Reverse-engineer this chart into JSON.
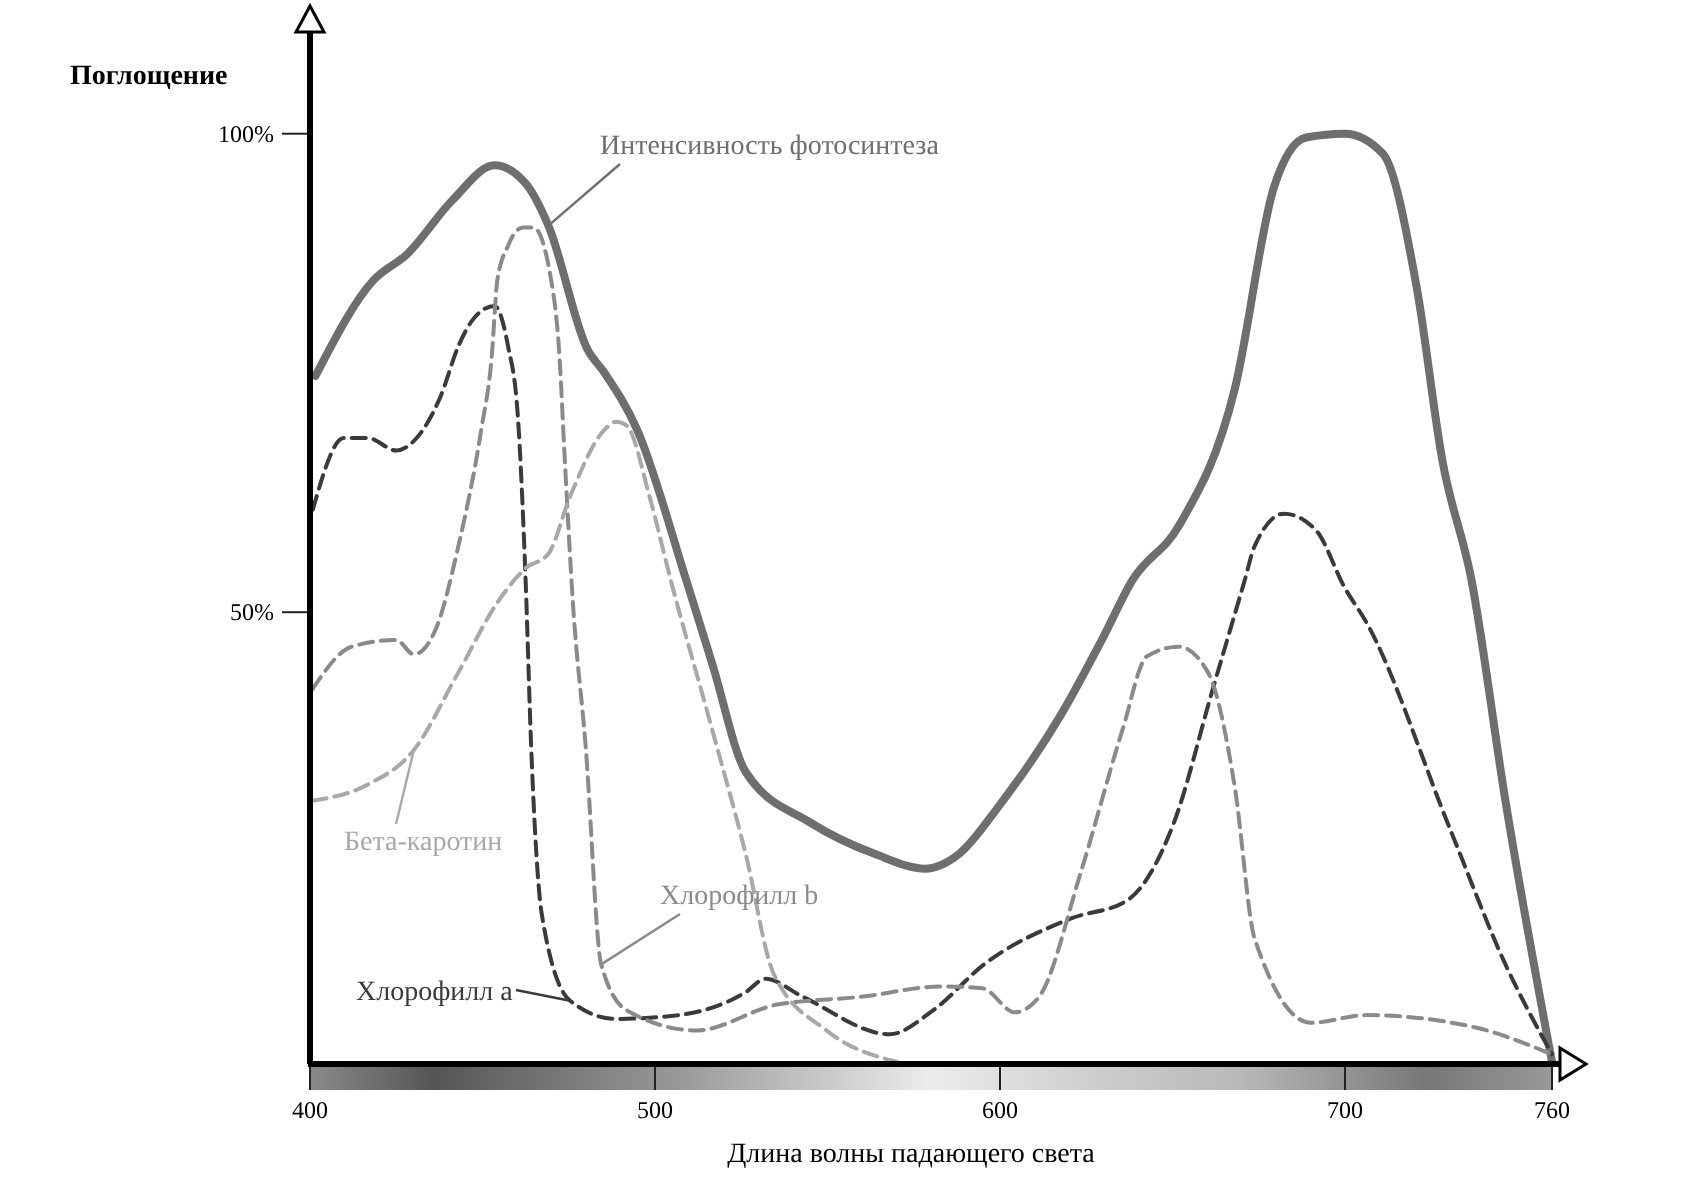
{
  "chart_data": {
    "type": "line",
    "xlabel": "Длина волны падающего света",
    "ylabel": "Поглощение",
    "xlim": [
      400,
      760
    ],
    "xticks": [
      400,
      500,
      600,
      700,
      760
    ],
    "ylim": [
      3,
      110
    ],
    "yticks": [
      {
        "value": 50,
        "label": "50%"
      },
      {
        "value": 100,
        "label": "100%"
      }
    ],
    "grid": false,
    "marker": "none",
    "series": [
      {
        "name": "Интенсивность фотосинтеза",
        "color": "#6e6e6e",
        "line_style": "solid",
        "x": [
          401.6,
          418.4,
          428.1,
          441.4,
          453.5,
          462.5,
          469.1,
          480.5,
          485.2,
          494.9,
          509.1,
          516.6,
          526.3,
          545.1,
          564,
          578.3,
          588,
          600,
          617.7,
          629.8,
          638.3,
          651.8,
          668.1,
          679.4,
          688.7,
          700,
          711,
          720.8,
          728.2,
          736.7,
          746.5,
          760
        ],
        "values": [
          74.7,
          84.7,
          87.4,
          93.1,
          96.7,
          94.8,
          90.4,
          77.4,
          75.1,
          69,
          53.3,
          44.6,
          33.3,
          28,
          24.7,
          23.2,
          24.7,
          29.9,
          39.3,
          47.3,
          53.3,
          59,
          73.4,
          94.4,
          99.6,
          100,
          97.9,
          83.9,
          65.9,
          53.3,
          30.3,
          3
        ]
      },
      {
        "name": "Хлорофилл a",
        "color": "#3a3a3a",
        "line_style": "dashed",
        "x": [
          400.8,
          409.8,
          416.8,
          425,
          430.9,
          437.9,
          443,
          447.7,
          453.5,
          457.4,
          460.2,
          462.5,
          464.1,
          467.2,
          475.4,
          488.7,
          506.9,
          526.3,
          532,
          542.9,
          568,
          580.6,
          595.4,
          620.6,
          636.9,
          650.4,
          661.7,
          670.9,
          673.8,
          682.3,
          691.5,
          700,
          706.1,
          730.6,
          746.5,
          760
        ],
        "values": [
          60.7,
          68.2,
          68.2,
          66.9,
          68.2,
          72.6,
          77.8,
          80.8,
          82,
          77.8,
          70.7,
          53.3,
          36,
          18.4,
          9.4,
          7.5,
          7.9,
          10.3,
          11.7,
          9.8,
          5.9,
          8.4,
          13.2,
          18,
          19.9,
          28,
          42,
          53.3,
          56.9,
          60.3,
          58.6,
          52.5,
          49,
          27.2,
          13.2,
          3.8
        ]
      },
      {
        "name": "Хлорофилл b",
        "color": "#8a8a8a",
        "line_style": "dashed",
        "x": [
          400.8,
          412.1,
          425,
          430.1,
          436.3,
          443,
          449.6,
          452.7,
          454.3,
          457.4,
          461.7,
          464.8,
          469.9,
          472.3,
          473.8,
          476.2,
          479.9,
          484.4,
          491.8,
          512,
          535.4,
          559.4,
          583.4,
          594.9,
          604.3,
          611.3,
          623.4,
          635.5,
          642.6,
          651.8,
          660.3,
          668.1,
          673.8,
          690.1,
          706.1,
          736.7,
          760
        ],
        "values": [
          42,
          46.4,
          47.1,
          45.6,
          48.1,
          56.9,
          69,
          76.8,
          84.7,
          88.3,
          90.2,
          90.2,
          84.7,
          76.8,
          66.3,
          51,
          36,
          13.2,
          8.4,
          6.3,
          9,
          9.8,
          10.9,
          10.7,
          8.2,
          9.8,
          22.8,
          37.7,
          45.4,
          46.4,
          43.7,
          31.6,
          15.9,
          7.1,
          7.9,
          6.7,
          3.8
        ]
      },
      {
        "name": "Бета-каротин",
        "color": "#a8a8a8",
        "line_style": "dashed",
        "x": [
          400.8,
          416.8,
          430.1,
          443,
          454.3,
          462.5,
          469.1,
          475.4,
          485.2,
          488.7,
          491.8,
          498.4,
          504.6,
          516.6,
          526.3,
          534.3,
          549.7,
          570.3
        ],
        "values": [
          30.3,
          32,
          35.6,
          43.7,
          51,
          54.6,
          56.1,
          62.1,
          69,
          69.9,
          69.5,
          62.1,
          53.3,
          37.7,
          24.7,
          12.3,
          6.3,
          3
        ]
      }
    ]
  }
}
